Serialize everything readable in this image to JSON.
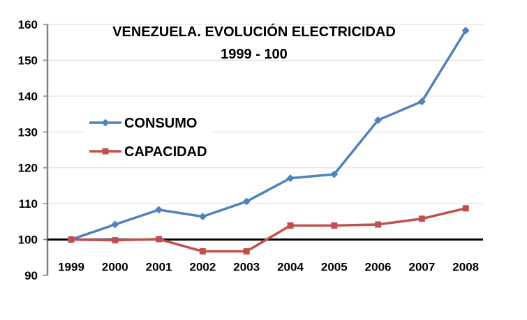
{
  "chart_data": {
    "type": "line",
    "title": "VENEZUELA. EVOLUCIÓN ELECTRICIDAD",
    "subtitle": "1999 - 100",
    "xlabel": "",
    "ylabel": "",
    "categories": [
      "1999",
      "2000",
      "2001",
      "2002",
      "2003",
      "2004",
      "2005",
      "2006",
      "2007",
      "2008"
    ],
    "ylim": [
      90,
      160
    ],
    "yticks": [
      90,
      100,
      110,
      120,
      130,
      140,
      150,
      160
    ],
    "baseline": 100,
    "grid": "horizontal",
    "legend_position": "left",
    "series": [
      {
        "name": "CONSUMO",
        "marker": "diamond",
        "color": "#4f81bd",
        "values": [
          100,
          104.2,
          108.3,
          106.4,
          110.6,
          117.1,
          118.2,
          133.3,
          138.5,
          158.3
        ]
      },
      {
        "name": "CAPACIDAD",
        "marker": "square",
        "color": "#c0504d",
        "values": [
          100,
          99.8,
          100.1,
          96.7,
          96.7,
          103.9,
          103.9,
          104.2,
          105.8,
          108.7
        ]
      }
    ]
  }
}
